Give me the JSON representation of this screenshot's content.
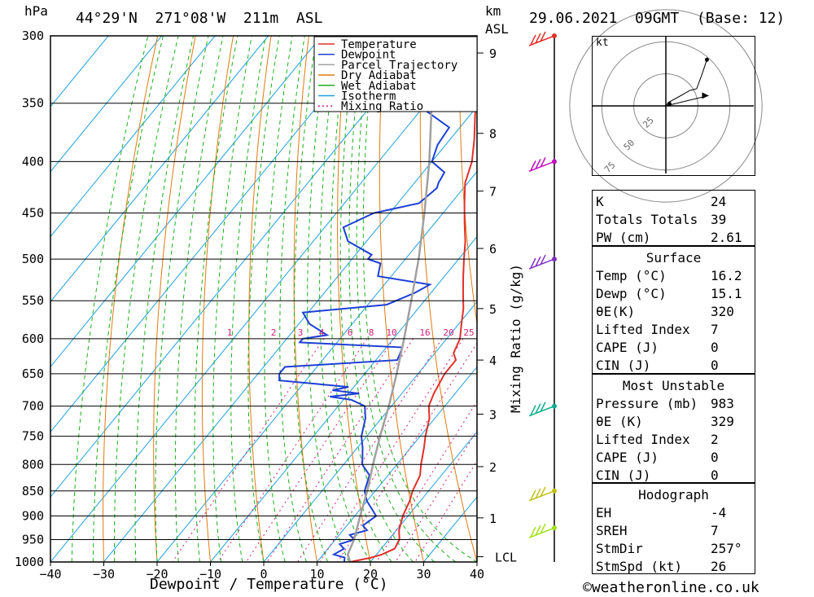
{
  "header": {
    "hpa_label": "hPa",
    "location": "44°29'N  271°08'W  211m  ASL",
    "km_label": "km",
    "asl_label": "ASL",
    "datetime": "29.06.2021  09GMT  (Base: 12)"
  },
  "axes": {
    "xlabel": "Dewpoint / Temperature (°C)",
    "temp_ticks": [
      -40,
      -30,
      -20,
      -10,
      0,
      10,
      20,
      30,
      40
    ],
    "pressure_ticks": [
      300,
      350,
      400,
      450,
      500,
      550,
      600,
      650,
      700,
      750,
      800,
      850,
      900,
      950,
      1000
    ],
    "km_ticks": [
      {
        "label": "9",
        "p": 312
      },
      {
        "label": "8",
        "p": 375
      },
      {
        "label": "7",
        "p": 428
      },
      {
        "label": "6",
        "p": 488
      },
      {
        "label": "5",
        "p": 560
      },
      {
        "label": "4",
        "p": 630
      },
      {
        "label": "3",
        "p": 713
      },
      {
        "label": "2",
        "p": 804
      },
      {
        "label": "1",
        "p": 904
      }
    ],
    "lcl_label": "LCL",
    "lcl_p": 988,
    "mixing_ratio_label": "Mixing Ratio (g/kg)",
    "mixing_ratio_values": [
      "1",
      "2",
      "3",
      "4",
      "6",
      "8",
      "10",
      "16",
      "20",
      "25"
    ]
  },
  "legend": {
    "items": [
      {
        "label": "Temperature",
        "color": "#e0302b"
      },
      {
        "label": "Dewpoint",
        "color": "#1c3fd6"
      },
      {
        "label": "Parcel Trajectory",
        "color": "#a0a0a0"
      },
      {
        "label": "Dry Adiabat",
        "color": "#e07a10"
      },
      {
        "label": "Wet Adiabat",
        "color": "#19b019"
      },
      {
        "label": "Isotherm",
        "color": "#1ea0e0"
      },
      {
        "label": "Mixing Ratio",
        "color": "#d0207a"
      }
    ]
  },
  "chart_data": {
    "type": "line",
    "title": "",
    "xlabel": "Dewpoint / Temperature (°C)",
    "ylabel": "hPa",
    "xlim": [
      -40,
      40
    ],
    "ylim": [
      1000,
      300
    ],
    "y_scale": "log",
    "skew": "skew-T log-p",
    "series": [
      {
        "name": "Temperature",
        "color": "#e0302b",
        "p": [
          1000,
          990,
          983,
          970,
          950,
          930,
          900,
          870,
          850,
          820,
          800,
          770,
          750,
          720,
          700,
          680,
          650,
          630,
          620,
          600,
          580,
          560,
          540,
          520,
          500,
          480,
          460,
          440,
          420,
          400,
          380,
          360,
          340,
          320,
          300
        ],
        "t": [
          16.2,
          19.5,
          21.0,
          22.5,
          22.0,
          20.5,
          19.0,
          18.0,
          17.0,
          16.0,
          14.5,
          12.5,
          11.0,
          9.0,
          7.0,
          6.0,
          5.0,
          5.0,
          3.5,
          2.5,
          0.5,
          -1.5,
          -4.0,
          -6.5,
          -9.0,
          -11.5,
          -14.5,
          -17.5,
          -20.5,
          -22.5,
          -25.5,
          -29.0,
          -32.5,
          -36.5,
          -41.0
        ]
      },
      {
        "name": "Dewpoint",
        "color": "#1c3fd6",
        "p": [
          1000,
          990,
          983,
          970,
          960,
          950,
          940,
          930,
          920,
          900,
          870,
          850,
          820,
          800,
          770,
          750,
          720,
          700,
          690,
          685,
          680,
          675,
          670,
          660,
          650,
          640,
          630,
          620,
          612,
          605,
          600,
          595,
          580,
          565,
          555,
          540,
          530,
          520,
          505,
          500,
          495,
          480,
          465,
          450,
          440,
          425,
          420,
          410,
          400,
          385,
          370,
          355,
          350,
          345,
          335,
          325,
          315,
          300
        ],
        "t": [
          15.1,
          14.5,
          12.0,
          13.0,
          11.5,
          13.5,
          12.0,
          14.5,
          13.0,
          14.0,
          10.0,
          8.0,
          6.5,
          3.5,
          1.0,
          -1.0,
          -3.0,
          -5.0,
          -8.5,
          -13.0,
          -8.0,
          -13.5,
          -11.0,
          -25.0,
          -26.0,
          -26.0,
          -6.0,
          -6.5,
          -7.0,
          -27.0,
          -27.0,
          -23.0,
          -28.0,
          -31.0,
          -16.5,
          -13.0,
          -11.5,
          -22.5,
          -24.0,
          -27.0,
          -27.0,
          -33.5,
          -36.5,
          -33.0,
          -26.0,
          -25.0,
          -25.5,
          -26.0,
          -30.0,
          -31.5,
          -32.0,
          -39.5,
          -43.0,
          -35.0,
          -46.0,
          -43.0,
          -67.0,
          -65.0
        ]
      },
      {
        "name": "Parcel Trajectory",
        "color": "#a0a0a0",
        "p": [
          1000,
          983,
          950,
          900,
          850,
          800,
          750,
          700,
          650,
          600,
          550,
          500,
          450,
          400,
          350,
          320
        ],
        "t": [
          16.2,
          14.6,
          13.5,
          11.0,
          8.5,
          5.5,
          2.5,
          -0.5,
          -4.0,
          -8.0,
          -12.5,
          -17.5,
          -23.5,
          -30.5,
          -39.0,
          -45.0
        ]
      }
    ],
    "mixing_ratio_lines_gkg": [
      1,
      2,
      3,
      4,
      6,
      8,
      10,
      16,
      20,
      25
    ]
  },
  "wind_barbs": [
    {
      "p": 300,
      "color": "#e0302b"
    },
    {
      "p": 400,
      "color": "#c010c0"
    },
    {
      "p": 500,
      "color": "#8030c0"
    },
    {
      "p": 700,
      "color": "#10b090"
    },
    {
      "p": 850,
      "color": "#c0c010"
    },
    {
      "p": 925,
      "color": "#a0e010"
    }
  ],
  "hodograph": {
    "unit": "kt",
    "ring_labels": [
      "25",
      "50",
      "75"
    ],
    "points": [
      [
        0.2,
        0.3
      ],
      [
        1.5,
        2.0
      ],
      [
        7,
        5
      ],
      [
        14,
        9
      ],
      [
        18,
        10
      ],
      [
        21,
        18
      ],
      [
        24,
        27
      ]
    ],
    "storm_motion_kt": [
      25,
      6
    ]
  },
  "indices": {
    "general": [
      {
        "label": "K",
        "value": "24"
      },
      {
        "label": "Totals Totals",
        "value": "39"
      },
      {
        "label": "PW (cm)",
        "value": "2.61"
      }
    ],
    "surface_title": "Surface",
    "surface": [
      {
        "label": "Temp (°C)",
        "value": "16.2"
      },
      {
        "label": "Dewp (°C)",
        "value": "15.1"
      },
      {
        "label": "θE(K)",
        "value": "320"
      },
      {
        "label": "Lifted Index",
        "value": "7"
      },
      {
        "label": "CAPE (J)",
        "value": "0"
      },
      {
        "label": "CIN (J)",
        "value": "0"
      }
    ],
    "mu_title": "Most Unstable",
    "mu": [
      {
        "label": "Pressure (mb)",
        "value": "983"
      },
      {
        "label": "θE (K)",
        "value": "329"
      },
      {
        "label": "Lifted Index",
        "value": "2"
      },
      {
        "label": "CAPE (J)",
        "value": "0"
      },
      {
        "label": "CIN (J)",
        "value": "0"
      }
    ],
    "hodo_title": "Hodograph",
    "hodo": [
      {
        "label": "EH",
        "value": "-4"
      },
      {
        "label": "SREH",
        "value": "7"
      },
      {
        "label": "StmDir",
        "value": "257°"
      },
      {
        "label": "StmSpd (kt)",
        "value": "26"
      }
    ]
  },
  "footer": {
    "copyright": "©weatheronline.co.uk"
  }
}
